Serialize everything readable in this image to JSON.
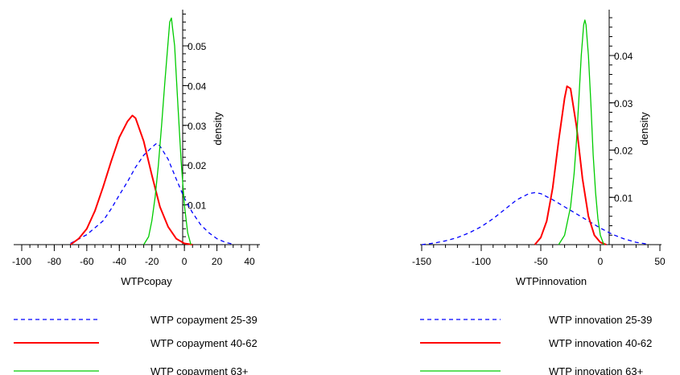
{
  "chart_data": [
    {
      "type": "line",
      "xlabel": "WTPcopay",
      "ylabel": "density",
      "xlim": [
        -100,
        45
      ],
      "ylim": [
        0,
        0.058
      ],
      "xticks": [
        -100,
        -80,
        -60,
        -40,
        -20,
        0,
        20,
        40
      ],
      "yticks": [
        0.01,
        0.02,
        0.03,
        0.04,
        0.05
      ],
      "grid": false,
      "series": [
        {
          "name": "WTP copayment 25-39",
          "color": "#0000ff",
          "style": "dashed",
          "x": [
            -70,
            -60,
            -50,
            -45,
            -40,
            -35,
            -30,
            -25,
            -20,
            -17,
            -15,
            -10,
            -5,
            0,
            5,
            10,
            15,
            20,
            25,
            30
          ],
          "y": [
            0.0003,
            0.0025,
            0.006,
            0.009,
            0.0125,
            0.0158,
            0.0195,
            0.0225,
            0.0245,
            0.0255,
            0.0248,
            0.0215,
            0.0165,
            0.0117,
            0.008,
            0.005,
            0.003,
            0.0015,
            0.0006,
            0.0001
          ]
        },
        {
          "name": "WTP copayment 40-62",
          "color": "#ff0000",
          "style": "solid",
          "x": [
            -70,
            -65,
            -60,
            -55,
            -50,
            -45,
            -40,
            -35,
            -32,
            -30,
            -25,
            -20,
            -15,
            -10,
            -5,
            0,
            5
          ],
          "y": [
            0,
            0.0015,
            0.004,
            0.0085,
            0.0145,
            0.021,
            0.027,
            0.031,
            0.0325,
            0.0318,
            0.026,
            0.0175,
            0.0095,
            0.0045,
            0.0015,
            0.0003,
            0
          ]
        },
        {
          "name": "WTP copayment 63+",
          "color": "#00cc00",
          "style": "solid",
          "x": [
            -25,
            -22,
            -20,
            -18,
            -16,
            -14,
            -12,
            -10,
            -9,
            -8,
            -6,
            -4,
            -2,
            0,
            2,
            4
          ],
          "y": [
            0,
            0.002,
            0.006,
            0.012,
            0.02,
            0.03,
            0.041,
            0.051,
            0.056,
            0.057,
            0.05,
            0.035,
            0.021,
            0.01,
            0.003,
            0
          ]
        }
      ]
    },
    {
      "type": "line",
      "xlabel": "WTPinnovation",
      "ylabel": "density",
      "xlim": [
        -155,
        50
      ],
      "ylim": [
        0,
        0.048
      ],
      "xticks": [
        -150,
        -100,
        -50,
        0,
        50
      ],
      "yticks": [
        0.01,
        0.02,
        0.03,
        0.04
      ],
      "grid": false,
      "series": [
        {
          "name": "WTP innovation 25-39",
          "color": "#0000ff",
          "style": "dashed",
          "x": [
            -150,
            -140,
            -130,
            -120,
            -110,
            -100,
            -90,
            -80,
            -70,
            -60,
            -55,
            -50,
            -40,
            -30,
            -20,
            -10,
            0,
            10,
            20,
            30,
            40
          ],
          "y": [
            0,
            0.0003,
            0.0008,
            0.0015,
            0.0025,
            0.0038,
            0.0055,
            0.0075,
            0.0095,
            0.0108,
            0.011,
            0.0108,
            0.0095,
            0.008,
            0.0065,
            0.005,
            0.0035,
            0.0022,
            0.0012,
            0.0005,
            0.0001
          ]
        },
        {
          "name": "WTP innovation 40-62",
          "color": "#ff0000",
          "style": "solid",
          "x": [
            -55,
            -50,
            -45,
            -40,
            -35,
            -30,
            -28,
            -25,
            -20,
            -15,
            -10,
            -5,
            0,
            5
          ],
          "y": [
            0,
            0.0015,
            0.005,
            0.012,
            0.022,
            0.031,
            0.0335,
            0.033,
            0.025,
            0.014,
            0.006,
            0.002,
            0.0005,
            0
          ]
        },
        {
          "name": "WTP innovation 63+",
          "color": "#00cc00",
          "style": "solid",
          "x": [
            -35,
            -30,
            -25,
            -22,
            -20,
            -18,
            -16,
            -14,
            -13,
            -12,
            -10,
            -8,
            -6,
            -4,
            -2,
            0,
            3
          ],
          "y": [
            0,
            0.002,
            0.008,
            0.015,
            0.022,
            0.031,
            0.04,
            0.0465,
            0.0475,
            0.0465,
            0.04,
            0.03,
            0.019,
            0.011,
            0.0055,
            0.002,
            0
          ]
        }
      ]
    }
  ]
}
